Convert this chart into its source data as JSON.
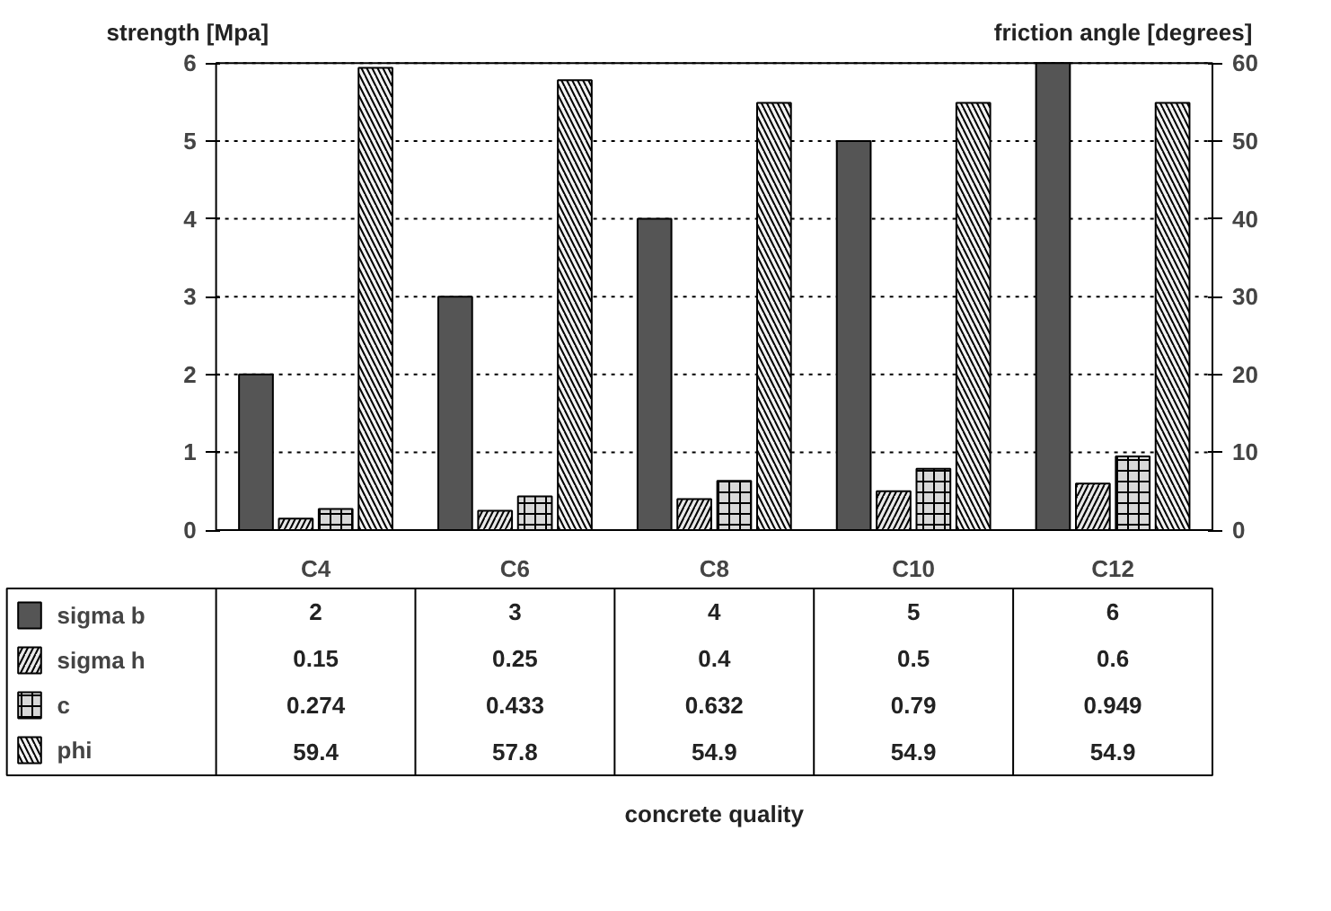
{
  "chart_data": {
    "type": "bar",
    "annotations": [
      "concrete quality"
    ],
    "ylabel": "strength [Mpa]",
    "y2label": "friction angle [degrees]",
    "categories": [
      "C4",
      "C6",
      "C8",
      "C10",
      "C12"
    ],
    "series": [
      {
        "name": "sigma b",
        "color": "#555555",
        "values": [
          2,
          3,
          4,
          5,
          6
        ]
      },
      {
        "name": "sigma h",
        "color": "#e8e8e8",
        "values": [
          0.15,
          0.25,
          0.4,
          0.5,
          0.6
        ]
      },
      {
        "name": "c",
        "color": "#d8d8d8",
        "values": [
          0.274,
          0.433,
          0.632,
          0.79,
          0.949
        ]
      },
      {
        "name": "phi",
        "color": "#f2f2f2",
        "axis": "y2",
        "values": [
          59.4,
          57.8,
          54.9,
          54.9,
          54.9
        ]
      }
    ],
    "ylim": [
      0,
      6
    ],
    "yticks": [
      0,
      1,
      2,
      3,
      4,
      5,
      6
    ],
    "y2lim": [
      0,
      60
    ],
    "y2ticks": [
      0,
      10,
      20,
      30,
      40,
      50,
      60
    ],
    "grid": "y",
    "legend": "bottom",
    "data_labels": true
  }
}
